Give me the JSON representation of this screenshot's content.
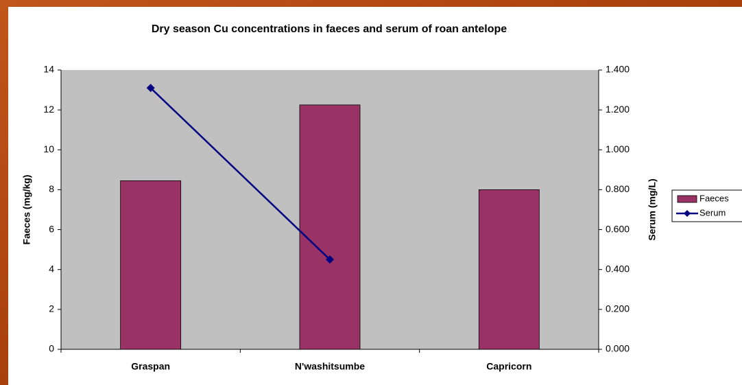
{
  "chart_data": {
    "type": "bar_line",
    "title": "Dry season Cu concentrations in faeces and serum of roan antelope",
    "categories": [
      "Graspan",
      "N'washitsumbe",
      "Capricorn"
    ],
    "series": [
      {
        "name": "Faeces",
        "type": "bar",
        "color": "#993366",
        "values": [
          8.45,
          12.25,
          8.0
        ]
      },
      {
        "name": "Serum",
        "type": "line",
        "axis": "y2",
        "color": "#000080",
        "values": [
          1.31,
          0.45,
          null
        ]
      }
    ],
    "ylabel": "Faeces (mg/kg)",
    "y2label": "Serum (mg/L)",
    "ylim": [
      0,
      14
    ],
    "yticks": [
      0,
      2,
      4,
      6,
      8,
      10,
      12,
      14
    ],
    "y2lim": [
      0,
      1.4
    ],
    "y2ticks": [
      {
        "value": 0,
        "label": "0.000"
      },
      {
        "value": 0.2,
        "label": "0.200"
      },
      {
        "value": 0.4,
        "label": "0.400"
      },
      {
        "value": 0.6,
        "label": "0.600"
      },
      {
        "value": 0.8,
        "label": "0.800"
      },
      {
        "value": 1.0,
        "label": "1.000"
      },
      {
        "value": 1.2,
        "label": "1.200"
      },
      {
        "value": 1.4,
        "label": "1.400"
      }
    ],
    "legend": "right",
    "plot_background": "#c0c0c0"
  }
}
